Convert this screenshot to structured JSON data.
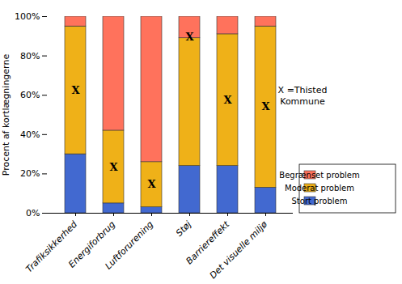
{
  "chart_data": {
    "type": "bar",
    "stacked": true,
    "categories": [
      "Trafiksikkerhed",
      "Energiforbrug",
      "Luftforurening",
      "Støj",
      "Barriereffekt",
      "Det visuelle miljø"
    ],
    "series": [
      {
        "name": "Stort problem",
        "values": [
          30,
          5,
          3,
          24,
          24,
          13
        ]
      },
      {
        "name": "Moderat problem",
        "values": [
          65,
          37,
          23,
          65,
          67,
          82
        ]
      },
      {
        "name": "Begrænset problem",
        "values": [
          5,
          58,
          74,
          11,
          9,
          5
        ]
      }
    ],
    "marker_label": "X",
    "marker_values": [
      62.5,
      23.5,
      14.5,
      89.5,
      57.5,
      54.0
    ],
    "annotation": "X =Thisted\nKommune",
    "ylabel": "Procent af kortlægningerne",
    "ylim": [
      0,
      100
    ],
    "yticks": [
      {
        "value": 0,
        "label": "0%"
      },
      {
        "value": 20,
        "label": "20%"
      },
      {
        "value": 40,
        "label": "40%"
      },
      {
        "value": 60,
        "label": "60%"
      },
      {
        "value": 80,
        "label": "80%"
      },
      {
        "value": 100,
        "label": "100%"
      }
    ],
    "grid": false,
    "legend": "lower right"
  }
}
